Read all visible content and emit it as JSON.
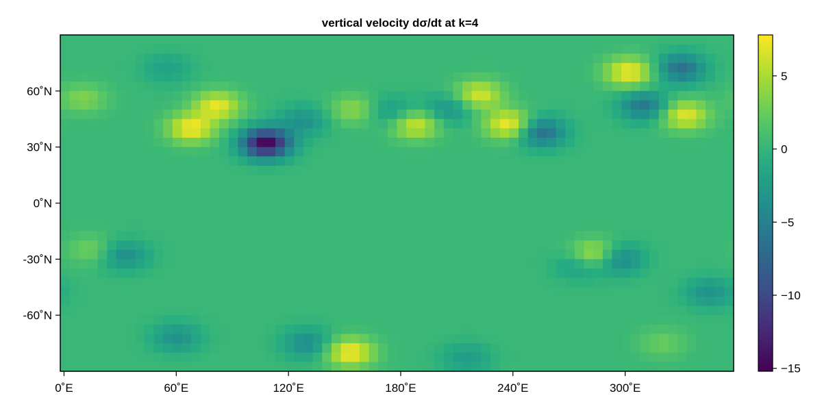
{
  "chart_data": {
    "type": "heatmap",
    "title": "vertical velocity dσ/dt at k=4",
    "xlabel": "",
    "ylabel": "",
    "xlim": [
      -2,
      358
    ],
    "ylim": [
      -90,
      90
    ],
    "x_ticks": [
      {
        "value": 0,
        "label": "0˚E"
      },
      {
        "value": 60,
        "label": "60˚E"
      },
      {
        "value": 120,
        "label": "120˚E"
      },
      {
        "value": 180,
        "label": "180˚E"
      },
      {
        "value": 240,
        "label": "240˚E"
      },
      {
        "value": 300,
        "label": "300˚E"
      }
    ],
    "y_ticks": [
      {
        "value": 60,
        "label": "60˚N"
      },
      {
        "value": 30,
        "label": "30˚N"
      },
      {
        "value": 0,
        "label": "0˚N"
      },
      {
        "value": -30,
        "label": "-30˚N"
      },
      {
        "value": -60,
        "label": "-60˚N"
      }
    ],
    "colorbar": {
      "colormap": "viridis",
      "range": [
        -15.2,
        7.8
      ],
      "ticks": [
        {
          "value": 5,
          "label": "5"
        },
        {
          "value": 0,
          "label": "0"
        },
        {
          "value": -5,
          "label": "−5"
        },
        {
          "value": -10,
          "label": "−10"
        },
        {
          "value": -15,
          "label": "−15"
        }
      ]
    },
    "grid": false,
    "background_value": 0.3,
    "features": [
      {
        "lon": 68,
        "lat": 40,
        "value": 7.5
      },
      {
        "lon": 82,
        "lat": 52,
        "value": 7.0
      },
      {
        "lon": 108,
        "lat": 32,
        "value": -15.0
      },
      {
        "lon": 128,
        "lat": 44,
        "value": -3.5
      },
      {
        "lon": 155,
        "lat": 50,
        "value": 4.0
      },
      {
        "lon": 175,
        "lat": 49,
        "value": -3.0
      },
      {
        "lon": 188,
        "lat": 42,
        "value": 6.5
      },
      {
        "lon": 205,
        "lat": 50,
        "value": -3.5
      },
      {
        "lon": 222,
        "lat": 58,
        "value": 6.5
      },
      {
        "lon": 238,
        "lat": 42,
        "value": 7.8
      },
      {
        "lon": 255,
        "lat": 38,
        "value": -7.0
      },
      {
        "lon": 302,
        "lat": 70,
        "value": 7.5
      },
      {
        "lon": 330,
        "lat": 72,
        "value": -6.5
      },
      {
        "lon": 310,
        "lat": 52,
        "value": -6.0
      },
      {
        "lon": 332,
        "lat": 47,
        "value": 7.0
      },
      {
        "lon": 55,
        "lat": 72,
        "value": -2.0
      },
      {
        "lon": 10,
        "lat": 56,
        "value": 3.5
      },
      {
        "lon": 284,
        "lat": -28,
        "value": 7.0
      },
      {
        "lon": 296,
        "lat": -30,
        "value": -5.5
      },
      {
        "lon": 276,
        "lat": -33,
        "value": -3.0
      },
      {
        "lon": 32,
        "lat": -28,
        "value": -4.0
      },
      {
        "lon": 15,
        "lat": -25,
        "value": 3.0
      },
      {
        "lon": 345,
        "lat": -48,
        "value": -3.5
      },
      {
        "lon": 153,
        "lat": -80,
        "value": 7.8
      },
      {
        "lon": 130,
        "lat": -75,
        "value": -4.0
      },
      {
        "lon": 60,
        "lat": -72,
        "value": -3.5
      },
      {
        "lon": 215,
        "lat": -83,
        "value": -2.5
      },
      {
        "lon": 320,
        "lat": -75,
        "value": 2.5
      }
    ]
  }
}
